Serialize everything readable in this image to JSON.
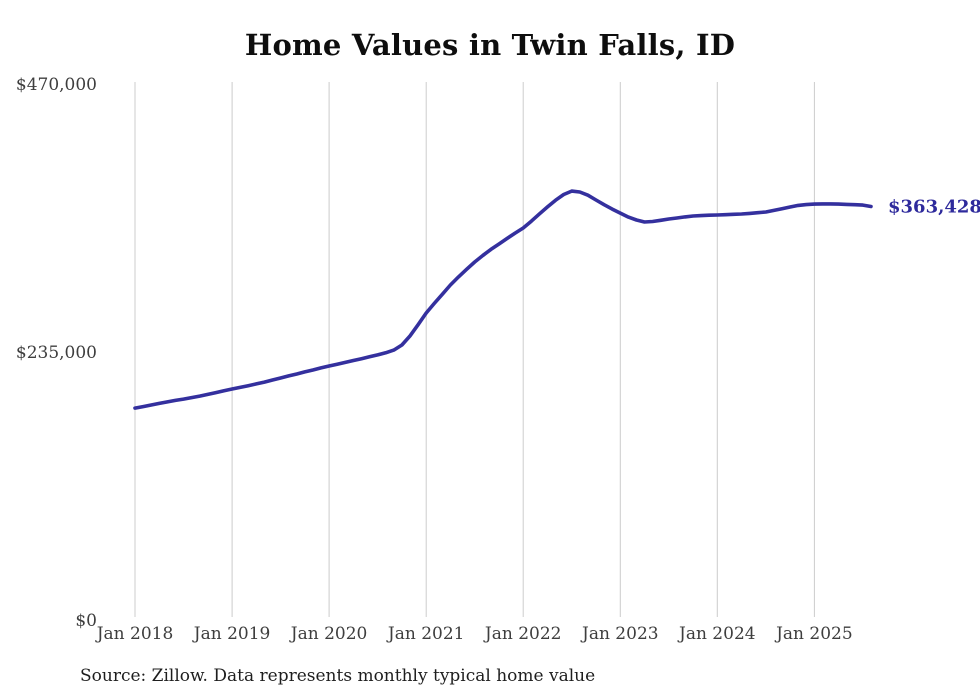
{
  "title": "Home Values in Twin Falls, ID",
  "source_note": "Source: Zillow. Data represents monthly typical home value",
  "colors": {
    "line": "#34309e",
    "latest_value_text": "#2e2a9c",
    "grid": "#cccccc",
    "axis_text": "#3e3e3e",
    "title_text": "#0e0e0e",
    "background": "#ffffff"
  },
  "chart_data": {
    "type": "line",
    "title": "Home Values in Twin Falls, ID",
    "xlabel": "",
    "ylabel": "",
    "ylim": [
      0,
      470000
    ],
    "grid": "vertical-only",
    "legend": "none",
    "latest_value_label": "$363,428",
    "x_range": {
      "start": "2018-01",
      "end": "2025-08",
      "interval": "monthly"
    },
    "x_axis": {
      "tick_labels": [
        "Jan 2018",
        "Jan 2019",
        "Jan 2020",
        "Jan 2021",
        "Jan 2022",
        "Jan 2023",
        "Jan 2024",
        "Jan 2025"
      ],
      "tick_month_indices": [
        0,
        12,
        24,
        36,
        48,
        60,
        72,
        84
      ]
    },
    "y_axis": {
      "tick_labels": [
        "$470,000",
        "$235,000",
        "$0"
      ],
      "tick_values": [
        470000,
        235000,
        0
      ]
    },
    "series": [
      {
        "name": "Typical home value",
        "values": [
          186700,
          188000,
          189400,
          190800,
          192100,
          193400,
          194600,
          195900,
          197200,
          198700,
          200300,
          201900,
          203400,
          204800,
          206300,
          207900,
          209500,
          211300,
          213100,
          214900,
          216600,
          218400,
          220100,
          221900,
          223600,
          225200,
          226800,
          228400,
          230000,
          231700,
          233300,
          235200,
          237500,
          242000,
          250000,
          259800,
          270100,
          278500,
          286500,
          294600,
          301700,
          308400,
          314800,
          320500,
          325800,
          330600,
          335400,
          340100,
          344600,
          350600,
          357000,
          363100,
          369000,
          374000,
          377000,
          376200,
          373400,
          369200,
          365000,
          361200,
          357700,
          354200,
          351600,
          349900,
          350300,
          351400,
          352500,
          353400,
          354300,
          355100,
          355500,
          355800,
          356000,
          356300,
          356600,
          356900,
          357400,
          358000,
          358600,
          360000,
          361500,
          363000,
          364400,
          365100,
          365600,
          365700,
          365700,
          365600,
          365300,
          365000,
          364700,
          363428
        ]
      }
    ]
  }
}
